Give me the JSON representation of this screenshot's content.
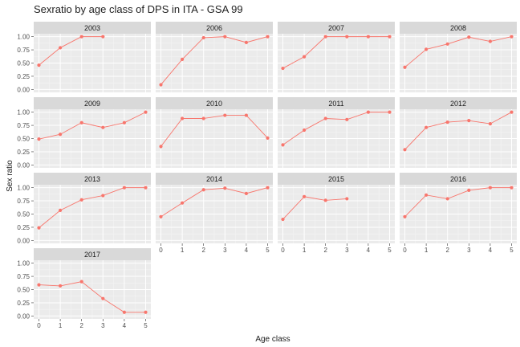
{
  "chart_data": {
    "type": "line",
    "title": "Sexratio by age class of DPS in ITA - GSA 99",
    "xlabel": "Age class",
    "ylabel": "Sex ratio",
    "series_color": "#F8766D",
    "x_ticks": [
      0,
      1,
      2,
      3,
      4,
      5
    ],
    "y_ticks": [
      0.0,
      0.25,
      0.5,
      0.75,
      1.0
    ],
    "y_tick_labels": [
      "0.00",
      "0.25",
      "0.50",
      "0.75",
      "1.00"
    ],
    "x_tick_labels": [
      "0",
      "1",
      "2",
      "3",
      "4",
      "5"
    ],
    "xlim": [
      0,
      5
    ],
    "ylim": [
      0,
      1
    ],
    "facets": [
      {
        "label": "2003",
        "x": [
          0,
          1,
          2,
          3
        ],
        "y": [
          0.46,
          0.79,
          1.0,
          1.0
        ]
      },
      {
        "label": "2006",
        "x": [
          0,
          1,
          2,
          3,
          4,
          5
        ],
        "y": [
          0.09,
          0.57,
          0.98,
          1.0,
          0.89,
          1.0
        ]
      },
      {
        "label": "2007",
        "x": [
          0,
          1,
          2,
          3,
          4,
          5
        ],
        "y": [
          0.4,
          0.62,
          1.0,
          1.0,
          1.0,
          1.0
        ]
      },
      {
        "label": "2008",
        "x": [
          0,
          1,
          2,
          3,
          4,
          5
        ],
        "y": [
          0.42,
          0.76,
          0.86,
          0.99,
          0.91,
          1.0
        ]
      },
      {
        "label": "2009",
        "x": [
          0,
          1,
          2,
          3,
          4,
          5
        ],
        "y": [
          0.49,
          0.58,
          0.8,
          0.71,
          0.8,
          1.0
        ]
      },
      {
        "label": "2010",
        "x": [
          0,
          1,
          2,
          3,
          4,
          5
        ],
        "y": [
          0.35,
          0.88,
          0.88,
          0.94,
          0.94,
          0.51
        ]
      },
      {
        "label": "2011",
        "x": [
          0,
          1,
          2,
          3,
          4,
          5
        ],
        "y": [
          0.38,
          0.66,
          0.88,
          0.86,
          1.0,
          1.0
        ]
      },
      {
        "label": "2012",
        "x": [
          0,
          1,
          2,
          3,
          4,
          5
        ],
        "y": [
          0.29,
          0.71,
          0.81,
          0.84,
          0.78,
          1.0
        ]
      },
      {
        "label": "2013",
        "x": [
          0,
          1,
          2,
          3,
          4,
          5
        ],
        "y": [
          0.24,
          0.57,
          0.77,
          0.85,
          1.0,
          1.0
        ]
      },
      {
        "label": "2014",
        "x": [
          0,
          1,
          2,
          3,
          4,
          5
        ],
        "y": [
          0.45,
          0.71,
          0.96,
          0.99,
          0.89,
          1.0
        ]
      },
      {
        "label": "2015",
        "x": [
          0,
          1,
          2,
          3
        ],
        "y": [
          0.4,
          0.83,
          0.76,
          0.79
        ]
      },
      {
        "label": "2016",
        "x": [
          0,
          1,
          2,
          3,
          4,
          5
        ],
        "y": [
          0.45,
          0.86,
          0.79,
          0.95,
          1.0,
          1.0
        ]
      },
      {
        "label": "2017",
        "x": [
          0,
          1,
          2,
          3,
          4,
          5
        ],
        "y": [
          0.59,
          0.57,
          0.65,
          0.33,
          0.07,
          0.07
        ]
      }
    ]
  }
}
